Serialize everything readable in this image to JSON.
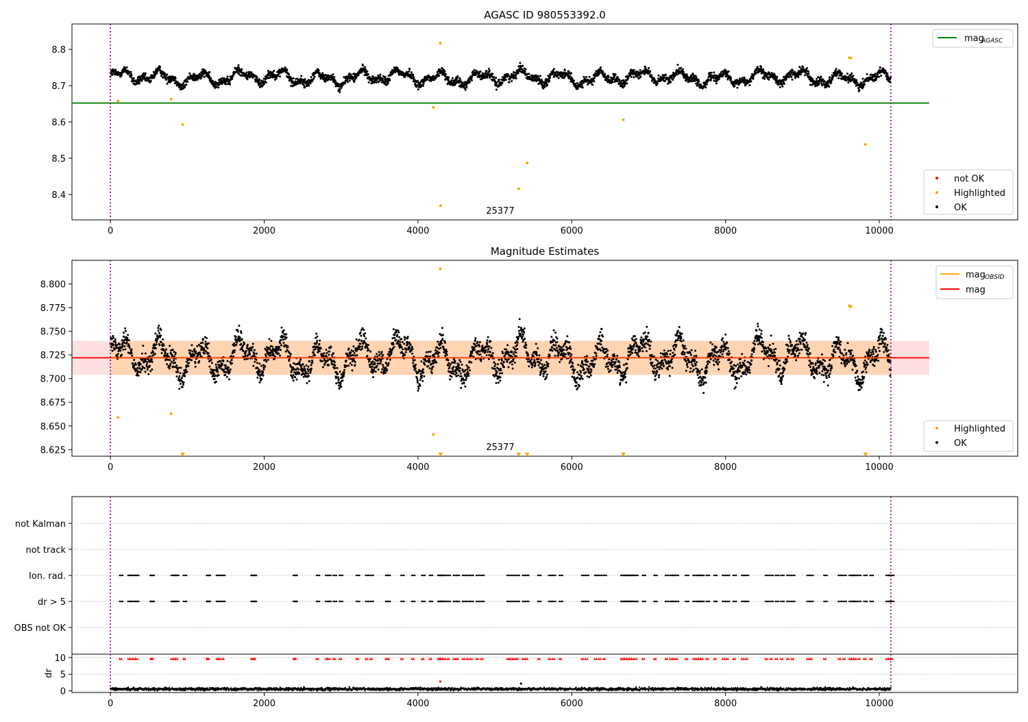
{
  "chart_data": [
    {
      "type": "scatter",
      "title": "AGASC ID 980553392.0",
      "xlim": [
        -500,
        11800
      ],
      "ylim": [
        8.33,
        8.87
      ],
      "xticks": [
        0,
        2000,
        4000,
        6000,
        8000,
        10000
      ],
      "yticks": [
        8.4,
        8.5,
        8.6,
        8.7,
        8.8
      ],
      "xtick_labels": [
        "0",
        "2000",
        "4000",
        "6000",
        "8000",
        "10000"
      ],
      "ytick_labels": [
        "8.4",
        "8.5",
        "8.6",
        "8.7",
        "8.8"
      ],
      "vlines": [
        0,
        10150
      ],
      "obsid_label": {
        "text": "25377",
        "x": 5070
      },
      "hline": {
        "y": 8.652,
        "x_range": [
          -500,
          10650
        ],
        "color": "#008000"
      },
      "series": [
        {
          "name": "OK",
          "color": "#000000",
          "x_range": [
            0,
            10150
          ],
          "mean": 8.722,
          "amplitude": 0.024,
          "noise": 0.008
        },
        {
          "name": "Highlighted",
          "color": "#ffa500",
          "x": [
            100,
            790,
            940,
            4200,
            4290,
            4295,
            5310,
            5420,
            6670,
            9610,
            9630,
            9820
          ],
          "y": [
            8.658,
            8.663,
            8.593,
            8.64,
            8.817,
            8.369,
            8.416,
            8.487,
            8.606,
            8.777,
            8.776,
            8.538
          ]
        },
        {
          "name": "not OK",
          "color": "#ff0000",
          "x": [],
          "y": []
        }
      ],
      "legend": {
        "upper": {
          "label": "mag",
          "sub": "AGASC"
        },
        "lower": [
          "not OK",
          "Highlighted",
          "OK"
        ],
        "upper_position": "top-right",
        "lower_position": "bottom-right"
      }
    },
    {
      "type": "scatter",
      "title": "Magnitude Estimates",
      "xlim": [
        -500,
        11800
      ],
      "ylim": [
        8.618,
        8.825
      ],
      "xticks": [
        0,
        2000,
        4000,
        6000,
        8000,
        10000
      ],
      "yticks": [
        8.625,
        8.65,
        8.675,
        8.7,
        8.725,
        8.75,
        8.775,
        8.8
      ],
      "xtick_labels": [
        "0",
        "2000",
        "4000",
        "6000",
        "8000",
        "10000"
      ],
      "ytick_labels": [
        "8.625",
        "8.650",
        "8.675",
        "8.700",
        "8.725",
        "8.750",
        "8.775",
        "8.800"
      ],
      "vlines": [
        0,
        10150
      ],
      "obsid_label": {
        "text": "25377",
        "x": 5070
      },
      "mag_line": {
        "y": 8.722,
        "x_range": [
          -500,
          10650
        ],
        "color": "#ff0000"
      },
      "mag_band": {
        "y_range": [
          8.704,
          8.74
        ],
        "x_range": [
          -500,
          10650
        ]
      },
      "obsid_band": {
        "y_range": [
          8.704,
          8.74
        ],
        "x_range": [
          0,
          10150
        ]
      },
      "series": [
        {
          "name": "OK",
          "color": "#000000",
          "x_range": [
            0,
            10150
          ],
          "mean": 8.722,
          "amplitude": 0.024,
          "noise": 0.008
        },
        {
          "name": "Highlighted",
          "color": "#ffa500",
          "x": [
            100,
            790,
            4200,
            4290,
            9610,
            9630
          ],
          "y": [
            8.659,
            8.663,
            8.641,
            8.816,
            8.777,
            8.776
          ]
        },
        {
          "name": "Highlighted (clipped)",
          "color": "#ffa500",
          "x": [
            940,
            4295,
            5310,
            5420,
            6670,
            9820
          ],
          "y": [
            8.621,
            8.621,
            8.621,
            8.621,
            8.621,
            8.621
          ]
        }
      ],
      "legend": {
        "upper": [
          {
            "label": "mag",
            "sub": "OBSID",
            "color": "#ffa500"
          },
          {
            "label": "mag",
            "sub": "",
            "color": "#ff0000"
          }
        ],
        "lower": [
          "Highlighted",
          "OK"
        ],
        "upper_position": "top-right",
        "lower_position": "bottom-right"
      }
    },
    {
      "type": "scatter",
      "title": "",
      "xlim": [
        -500,
        11800
      ],
      "categories": [
        "not Kalman",
        "not track",
        "Ion. rad.",
        "dr > 5",
        "OBS not OK"
      ],
      "flag_x": [
        120,
        230,
        260,
        300,
        330,
        520,
        530,
        790,
        820,
        850,
        950,
        1250,
        1260,
        1380,
        1400,
        1450,
        1830,
        1850,
        1860,
        2380,
        2390,
        2680,
        2800,
        2830,
        2900,
        2980,
        3200,
        3320,
        3380,
        3580,
        3600,
        3780,
        3920,
        4050,
        4150,
        4260,
        4270,
        4300,
        4330,
        4380,
        4460,
        4500,
        4580,
        4630,
        4680,
        4760,
        4820,
        5160,
        5200,
        5240,
        5280,
        5360,
        5400,
        5560,
        5700,
        5750,
        5840,
        6130,
        6180,
        6300,
        6350,
        6410,
        6640,
        6660,
        6690,
        6720,
        6750,
        6780,
        6820,
        6920,
        7070,
        7220,
        7280,
        7310,
        7350,
        7480,
        7580,
        7620,
        7650,
        7680,
        7750,
        7850,
        7960,
        8010,
        8100,
        8210,
        8260,
        8520,
        8580,
        8650,
        8720,
        8800,
        8860,
        9060,
        9100,
        9280,
        9470,
        9530,
        9610,
        9640,
        9670,
        9720,
        9800,
        9880,
        10090,
        10120,
        10150
      ],
      "dr_panel": {
        "ylabel": "dr",
        "ylim": [
          -0.5,
          11
        ],
        "yticks": [
          0,
          5,
          10
        ],
        "ytick_labels": [
          "0",
          "5",
          "10"
        ],
        "threshold": 5,
        "peak_points": {
          "x": [
            4290,
            5340
          ],
          "y": [
            2.8,
            2.2
          ]
        }
      },
      "vlines": [
        0,
        10150
      ],
      "xticks": [
        0,
        2000,
        4000,
        6000,
        8000,
        10000
      ],
      "xtick_labels": [
        "0",
        "2000",
        "4000",
        "6000",
        "8000",
        "10000"
      ]
    }
  ]
}
